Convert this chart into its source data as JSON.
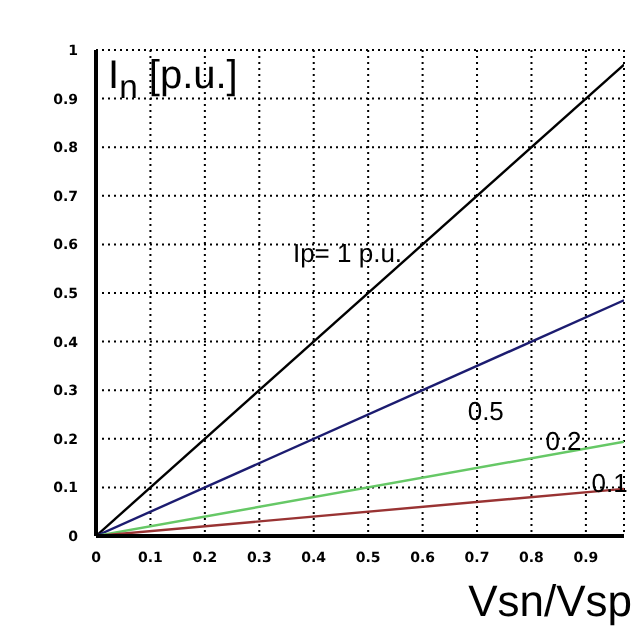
{
  "chart_data": {
    "type": "line",
    "xlabel": "Vsn/Vsp",
    "ylabel": "I$_{n}$ [p.u.]",
    "x": [
      0,
      0.97
    ],
    "series": [
      {
        "color": "#000000",
        "values": [
          0,
          0.97
        ]
      },
      {
        "color": "#1c1c70",
        "values": [
          0,
          0.485
        ]
      },
      {
        "color": "#66c866",
        "values": [
          0,
          0.194
        ]
      },
      {
        "color": "#993333",
        "values": [
          0,
          0.097
        ]
      }
    ],
    "xlim": [
      0,
      0.97
    ],
    "xticks": [
      0,
      0.1,
      0.2,
      0.3,
      0.4,
      0.5,
      0.6,
      0.7,
      0.8,
      0.9
    ],
    "ylim": [
      0,
      1
    ],
    "yticks": [
      0,
      0.1,
      0.2,
      0.3,
      0.4,
      0.5,
      0.6,
      0.7,
      0.8,
      0.9,
      1
    ],
    "grid": true,
    "marker": "none",
    "line_style": "solid",
    "annotations": [
      "Ip= 1 p.u.",
      "0.5",
      "0.2",
      "0.1"
    ]
  }
}
